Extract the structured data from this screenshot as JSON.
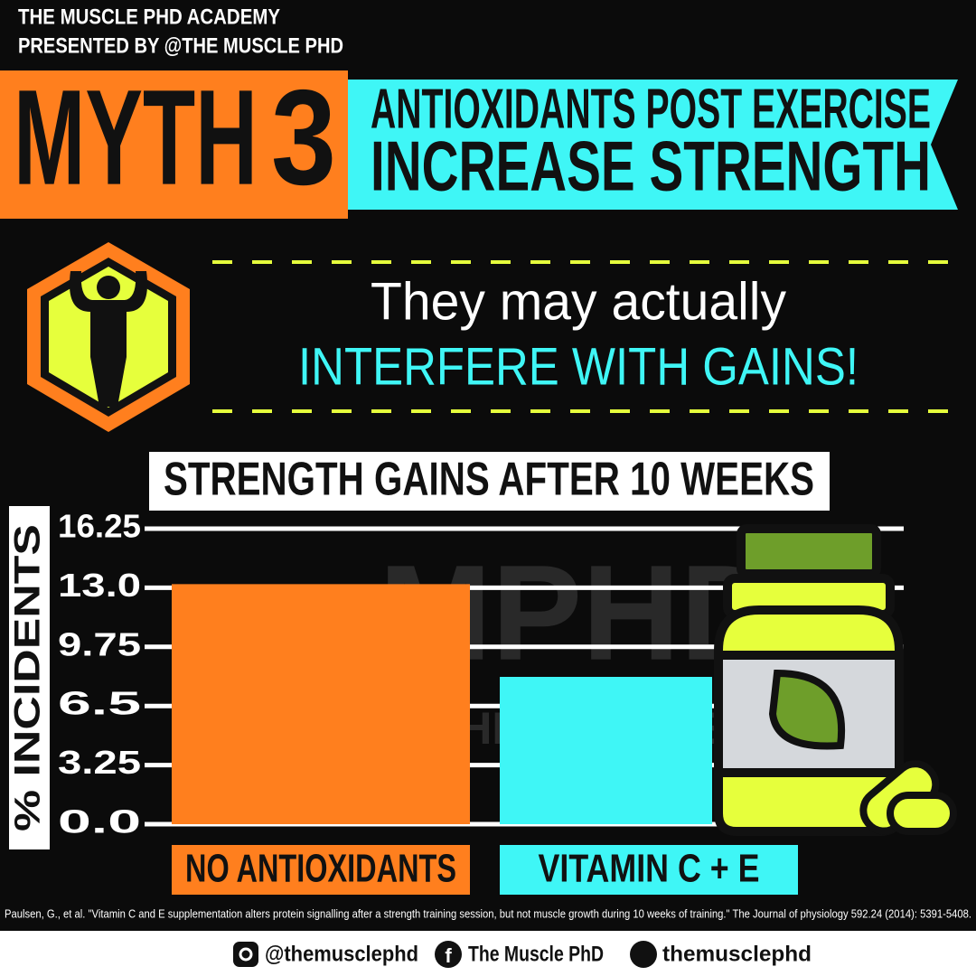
{
  "header": {
    "lines": [
      "THE MUSCLE PHD ACADEMY",
      "PRESENTED BY @THE MUSCLE PHD"
    ]
  },
  "myth": {
    "label": "MYTH",
    "number": "3",
    "claim": [
      "ANTIOXIDANTS POST EXERCISE",
      "INCREASE STRENGTH"
    ]
  },
  "verdict": {
    "line1": "They may actually",
    "line2": "INTERFERE WITH GAINS!"
  },
  "watermark": [
    "MPHD",
    "THE MUSCLE PHD"
  ],
  "chart_data": {
    "type": "bar",
    "title": "STRENGTH GAINS AFTER 10 WEEKS",
    "y_label": "% INCIDENTS",
    "categories": [
      "NO ANTIOXIDANTS",
      "VITAMIN C + E"
    ],
    "values": [
      13.2,
      8.1
    ],
    "colors": [
      "#ff7f1e",
      "#3ff6f6"
    ],
    "ylim": [
      0,
      16.25
    ],
    "yticks": [
      {
        "value": 0,
        "label": "0.0"
      },
      3.25,
      6.5,
      9.75,
      {
        "value": 13,
        "label": "13.0"
      },
      16.25
    ],
    "grid": true
  },
  "citation": "Paulsen, G., et al. \"Vitamin C and E supplementation alters protein signalling after a strength training session, but not muscle growth during 10 weeks of training.\" The Journal of physiology 592.24 (2014): 5391-5408.",
  "footer": {
    "instagram": "@themusclephd",
    "facebook": "The Muscle PhD",
    "snapchat": "themusclephd"
  }
}
